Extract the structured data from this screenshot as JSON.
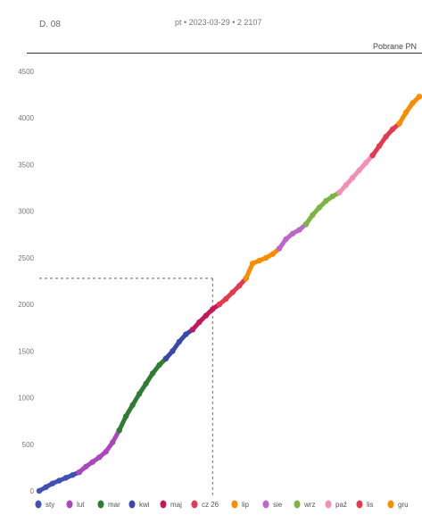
{
  "header": {
    "left_text": "D. 08",
    "center_text": "pt • 2023-03-29 • 2 2107",
    "right_text": "Pobrane PN"
  },
  "chart_data": {
    "type": "line",
    "title": "",
    "xlabel": "",
    "ylabel": "",
    "ylim": [
      0,
      4500
    ],
    "yticks": [
      0,
      500,
      1000,
      1500,
      2000,
      2500,
      3000,
      3500,
      4000,
      4500
    ],
    "ytick_labels": [
      "0",
      "500",
      "1000",
      "1500",
      "2000",
      "2500",
      "3000",
      "3500",
      "4000",
      "4500"
    ],
    "grid": false,
    "legend_position": "bottom",
    "marker_day": 26,
    "marker_value": 2280,
    "series": [
      {
        "name": "sty",
        "color": "#3f51b5",
        "points": [
          [
            0,
            0
          ],
          [
            1,
            40
          ],
          [
            2,
            80
          ],
          [
            3,
            110
          ],
          [
            4,
            140
          ],
          [
            5,
            170
          ],
          [
            6,
            200
          ]
        ]
      },
      {
        "name": "lut",
        "color": "#ab47bc",
        "points": [
          [
            6,
            200
          ],
          [
            7,
            260
          ],
          [
            8,
            310
          ],
          [
            9,
            360
          ],
          [
            10,
            420
          ],
          [
            11,
            520
          ],
          [
            12,
            650
          ]
        ]
      },
      {
        "name": "mar",
        "color": "#2e7d32",
        "points": [
          [
            12,
            650
          ],
          [
            13,
            800
          ],
          [
            14,
            920
          ],
          [
            15,
            1040
          ],
          [
            16,
            1150
          ],
          [
            17,
            1260
          ],
          [
            18,
            1350
          ],
          [
            19,
            1420
          ]
        ]
      },
      {
        "name": "kwi",
        "color": "#3949ab",
        "points": [
          [
            19,
            1420
          ],
          [
            20,
            1500
          ],
          [
            21,
            1600
          ],
          [
            22,
            1680
          ],
          [
            23,
            1730
          ]
        ]
      },
      {
        "name": "maj",
        "color": "#c2185b",
        "points": [
          [
            23,
            1730
          ],
          [
            24,
            1810
          ],
          [
            25,
            1880
          ],
          [
            26,
            1950
          ],
          [
            27,
            2000
          ]
        ]
      },
      {
        "name": "cz 26",
        "color": "#e53950",
        "points": [
          [
            27,
            2000
          ],
          [
            28,
            2060
          ],
          [
            29,
            2130
          ],
          [
            30,
            2200
          ],
          [
            31,
            2280
          ]
        ]
      },
      {
        "name": "lip",
        "color": "#fb8c00",
        "points": [
          [
            31,
            2280
          ],
          [
            32,
            2440
          ],
          [
            33,
            2470
          ],
          [
            34,
            2500
          ],
          [
            35,
            2540
          ],
          [
            36,
            2600
          ]
        ]
      },
      {
        "name": "sie",
        "color": "#ba68c8",
        "points": [
          [
            36,
            2600
          ],
          [
            37,
            2700
          ],
          [
            38,
            2760
          ],
          [
            39,
            2800
          ],
          [
            40,
            2860
          ]
        ]
      },
      {
        "name": "wrz",
        "color": "#7cb342",
        "points": [
          [
            40,
            2860
          ],
          [
            41,
            2960
          ],
          [
            42,
            3040
          ],
          [
            43,
            3110
          ],
          [
            44,
            3160
          ],
          [
            45,
            3200
          ]
        ]
      },
      {
        "name": "paź",
        "color": "#f48fb1",
        "points": [
          [
            45,
            3200
          ],
          [
            46,
            3280
          ],
          [
            47,
            3360
          ],
          [
            48,
            3440
          ],
          [
            49,
            3520
          ],
          [
            50,
            3600
          ]
        ]
      },
      {
        "name": "lis",
        "color": "#e53950",
        "points": [
          [
            50,
            3600
          ],
          [
            51,
            3700
          ],
          [
            52,
            3800
          ],
          [
            53,
            3880
          ],
          [
            54,
            3940
          ]
        ]
      },
      {
        "name": "gru",
        "color": "#fb8c00",
        "points": [
          [
            54,
            3940
          ],
          [
            55,
            4060
          ],
          [
            56,
            4160
          ],
          [
            57,
            4230
          ]
        ]
      }
    ]
  }
}
